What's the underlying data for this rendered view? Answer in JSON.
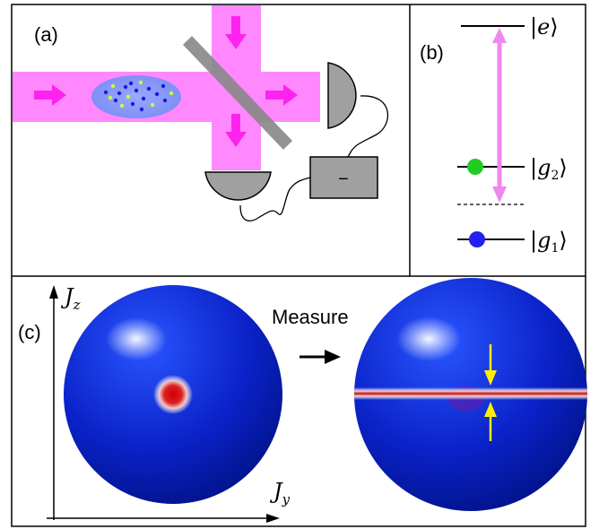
{
  "panel_a": {
    "label": "(a)",
    "detector_box_symbol": "−"
  },
  "panel_b": {
    "label": "(b)",
    "levels": [
      {
        "name": "e",
        "ket_open": "|",
        "letter": "e",
        "sub": "",
        "ket_close": "⟩"
      },
      {
        "name": "g2",
        "ket_open": "|",
        "letter": "g",
        "sub": "2",
        "ket_close": "⟩"
      },
      {
        "name": "g1",
        "ket_open": "|",
        "letter": "g",
        "sub": "1",
        "ket_close": "⟩"
      }
    ],
    "colors": {
      "g2_atom": "#22cc22",
      "g1_atom": "#2222ee",
      "transition": "#ee88ee"
    }
  },
  "panel_c": {
    "label": "(c)",
    "measure_label": "Measure",
    "axis_z": {
      "letter": "J",
      "sub": "z"
    },
    "axis_y": {
      "letter": "J",
      "sub": "y"
    },
    "colors": {
      "sphere": "#0a1fbf",
      "squeeze": "#cc1111",
      "arrows": "#ffee00"
    }
  },
  "colors": {
    "beam": "#ff88ff",
    "beam_arrow": "#ff22ee",
    "cloud": "#8899ff",
    "detector": "#a0a0a0",
    "splitter": "#888888"
  }
}
